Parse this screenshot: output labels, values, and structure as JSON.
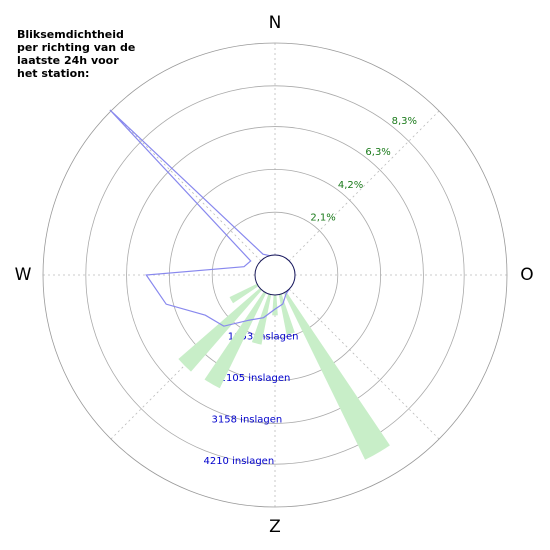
{
  "chart_data": {
    "type": "polar",
    "title": "Bliksemdichtheid per richting van de laatste 24h voor het station:",
    "compass": [
      {
        "value": 0,
        "label": "N"
      },
      {
        "value": 90,
        "label": "O"
      },
      {
        "value": 180,
        "label": "Z"
      },
      {
        "value": 270,
        "label": "W"
      }
    ],
    "theta": [
      0,
      15,
      30,
      45,
      60,
      75,
      90,
      105,
      120,
      135,
      150,
      165,
      180,
      195,
      210,
      225,
      240,
      255,
      270,
      285,
      300,
      315,
      330,
      345
    ],
    "rlim": [
      0,
      10.4
    ],
    "rticks": [
      {
        "value": 2.1,
        "label": "2,1%"
      },
      {
        "value": 4.2,
        "label": "4,2%"
      },
      {
        "value": 6.3,
        "label": "6,3%"
      },
      {
        "value": 8.3,
        "label": "8,3%"
      }
    ],
    "r2lim": [
      0,
      5263
    ],
    "r2ticks": [
      {
        "value": 1053,
        "label": "1053 inslagen"
      },
      {
        "value": 2105,
        "label": "2105 inslagen"
      },
      {
        "value": 3158,
        "label": "3158 inslagen"
      },
      {
        "value": 4210,
        "label": "4210 inslagen"
      }
    ],
    "series": [
      {
        "kind": "bar",
        "color": "#c8eec8",
        "values": [
          0,
          0,
          0,
          0,
          0,
          0,
          0,
          0,
          0,
          0,
          9.1,
          2.0,
          1.0,
          2.5,
          5.2,
          5.3,
          1.5,
          0,
          0,
          0,
          0,
          0,
          0,
          0
        ]
      },
      {
        "kind": "line",
        "axis": "r2",
        "color": "#8888ee",
        "values": [
          0,
          0,
          0,
          0,
          0,
          0,
          0,
          0,
          0,
          0,
          50,
          250,
          350,
          600,
          800,
          1300,
          1500,
          2300,
          2700,
          300,
          200,
          5300,
          100,
          0
        ]
      }
    ]
  }
}
